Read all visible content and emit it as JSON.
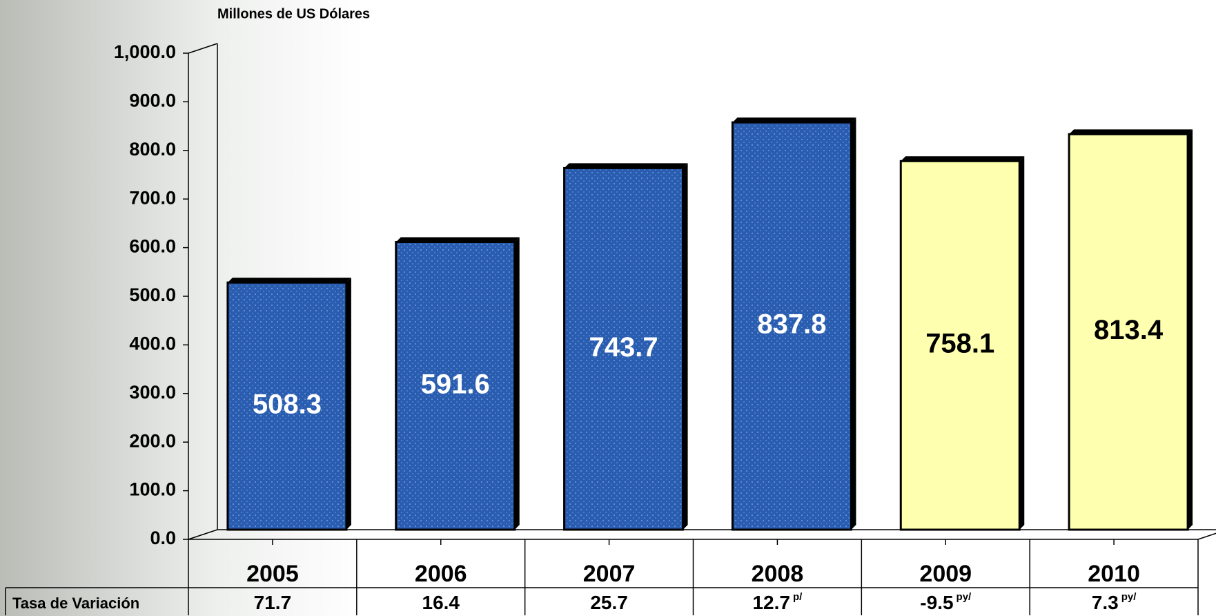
{
  "chart_data": {
    "type": "bar",
    "y_axis_label": "Millones de US Dólares",
    "categories": [
      "2005",
      "2006",
      "2007",
      "2008",
      "2009",
      "2010"
    ],
    "values": [
      508.3,
      591.6,
      743.7,
      837.8,
      758.1,
      813.4
    ],
    "colors": [
      "#2a5db0",
      "#2a5db0",
      "#2a5db0",
      "#2a5db0",
      "#ffffb0",
      "#ffffb0"
    ],
    "label_colors": [
      "#ffffff",
      "#ffffff",
      "#ffffff",
      "#ffffff",
      "#000000",
      "#000000"
    ],
    "ylim": [
      0,
      1000
    ],
    "yticks": [
      {
        "value": 0,
        "label": "0.0"
      },
      {
        "value": 100,
        "label": "100.0"
      },
      {
        "value": 200,
        "label": "200.0"
      },
      {
        "value": 300,
        "label": "300.0"
      },
      {
        "value": 400,
        "label": "400.0"
      },
      {
        "value": 500,
        "label": "500.0"
      },
      {
        "value": 600,
        "label": "600.0"
      },
      {
        "value": 700,
        "label": "700.0"
      },
      {
        "value": 800,
        "label": "800.0"
      },
      {
        "value": 900,
        "label": "900.0"
      },
      {
        "value": 1000,
        "label": "1,000.0"
      }
    ],
    "table": {
      "row_label": "Tasa de Variación",
      "rates": [
        {
          "value": 71.7
        },
        {
          "value": 16.4
        },
        {
          "value": 25.7
        },
        {
          "value": 12.7,
          "note": "p/"
        },
        {
          "value": -9.5,
          "note": "py/"
        },
        {
          "value": 7.3,
          "note": "py/"
        }
      ]
    }
  }
}
